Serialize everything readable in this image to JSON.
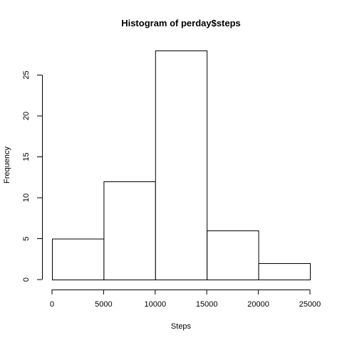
{
  "chart_data": {
    "type": "bar",
    "subtype": "histogram",
    "title": "Histogram of perday$steps",
    "xlabel": "Steps",
    "ylabel": "Frequency",
    "bins": [
      {
        "from": 0,
        "to": 5000,
        "count": 5
      },
      {
        "from": 5000,
        "to": 10000,
        "count": 12
      },
      {
        "from": 10000,
        "to": 15000,
        "count": 28
      },
      {
        "from": 15000,
        "to": 20000,
        "count": 6
      },
      {
        "from": 20000,
        "to": 25000,
        "count": 2
      }
    ],
    "xlim": [
      0,
      25000
    ],
    "ylim": [
      0,
      28
    ],
    "x_ticks": [
      "0",
      "5000",
      "10000",
      "15000",
      "20000",
      "25000"
    ],
    "y_ticks": [
      "0",
      "5",
      "10",
      "15",
      "20",
      "25"
    ],
    "grid": false,
    "legend": false,
    "bar_fill": "#ffffff",
    "bar_stroke": "#000000"
  }
}
